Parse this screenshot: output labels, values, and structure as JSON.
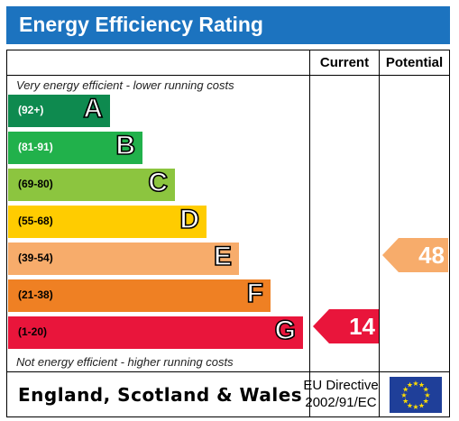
{
  "header": {
    "title": "Energy Efficiency Rating"
  },
  "columns": {
    "current": "Current",
    "potential": "Potential"
  },
  "captions": {
    "top": "Very energy efficient - lower running costs",
    "bottom": "Not energy efficient - higher running costs"
  },
  "bands": [
    {
      "range": "(92+)",
      "letter": "A",
      "color": "#0e8a4f",
      "range_color": "#ffffff"
    },
    {
      "range": "(81-91)",
      "letter": "B",
      "color": "#21b14b",
      "range_color": "#ffffff"
    },
    {
      "range": "(69-80)",
      "letter": "C",
      "color": "#8cc53f",
      "range_color": "#000000"
    },
    {
      "range": "(55-68)",
      "letter": "D",
      "color": "#ffcc00",
      "range_color": "#000000"
    },
    {
      "range": "(39-54)",
      "letter": "E",
      "color": "#f7ac6b",
      "range_color": "#000000"
    },
    {
      "range": "(21-38)",
      "letter": "F",
      "color": "#ef8023",
      "range_color": "#000000"
    },
    {
      "range": "(1-20)",
      "letter": "G",
      "color": "#e9153b",
      "range_color": "#000000"
    }
  ],
  "ratings": {
    "current": {
      "value": "14",
      "band": "G",
      "color": "#e9153b"
    },
    "potential": {
      "value": "48",
      "band": "E",
      "color": "#f7ac6b"
    }
  },
  "footer": {
    "region": "England, Scotland & Wales",
    "directive_line1": "EU Directive",
    "directive_line2": "2002/91/EC",
    "flag_icon": "eu-flag-icon"
  }
}
